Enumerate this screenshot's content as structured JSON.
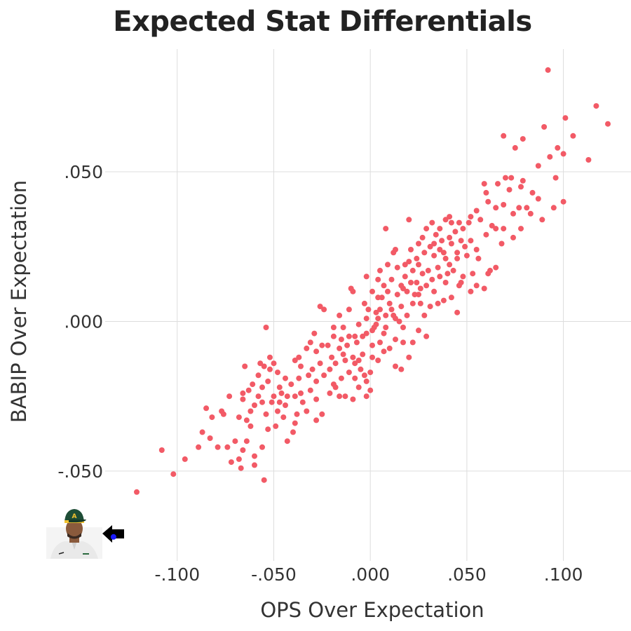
{
  "chart_data": {
    "type": "scatter",
    "title": "Expected Stat Differentials",
    "xlabel": "OPS Over Expectation",
    "ylabel": "BABIP Over Expectation",
    "xlim": [
      -0.17,
      0.135
    ],
    "ylim": [
      -0.08,
      0.091
    ],
    "x_ticks": [
      -0.1,
      -0.05,
      0.0,
      0.05,
      0.1
    ],
    "x_tick_labels": [
      "-.100",
      "-.050",
      ".000",
      ".050",
      ".100"
    ],
    "y_ticks": [
      -0.05,
      0.0,
      0.05
    ],
    "y_tick_labels": [
      "-.050",
      ".000",
      ".050"
    ],
    "grid": true,
    "colors": {
      "points": "#f25a66",
      "highlight": "#1a1aff",
      "grid": "#dddddd",
      "arrow": "#000000"
    },
    "icons": [
      "player-headshot",
      "left-arrow-icon"
    ],
    "highlight": {
      "x": -0.133,
      "y": -0.072
    },
    "points": [
      [
        0.092,
        0.084
      ],
      [
        0.117,
        0.072
      ],
      [
        0.123,
        0.066
      ],
      [
        0.101,
        0.068
      ],
      [
        0.069,
        0.062
      ],
      [
        0.079,
        0.061
      ],
      [
        0.09,
        0.065
      ],
      [
        0.105,
        0.062
      ],
      [
        0.075,
        0.058
      ],
      [
        0.097,
        0.058
      ],
      [
        0.1,
        0.056
      ],
      [
        0.093,
        0.055
      ],
      [
        0.113,
        0.054
      ],
      [
        0.087,
        0.052
      ],
      [
        0.07,
        0.048
      ],
      [
        0.073,
        0.048
      ],
      [
        0.079,
        0.047
      ],
      [
        0.096,
        0.048
      ],
      [
        0.059,
        0.046
      ],
      [
        0.078,
        0.045
      ],
      [
        0.072,
        0.044
      ],
      [
        0.087,
        0.041
      ],
      [
        0.061,
        0.04
      ],
      [
        0.065,
        0.038
      ],
      [
        0.069,
        0.039
      ],
      [
        0.074,
        0.036
      ],
      [
        0.077,
        0.038
      ],
      [
        0.081,
        0.038
      ],
      [
        0.1,
        0.04
      ],
      [
        0.055,
        0.037
      ],
      [
        0.052,
        0.035
      ],
      [
        0.057,
        0.034
      ],
      [
        0.063,
        0.032
      ],
      [
        0.083,
        0.036
      ],
      [
        0.041,
        0.035
      ],
      [
        0.042,
        0.033
      ],
      [
        0.039,
        0.034
      ],
      [
        0.046,
        0.033
      ],
      [
        0.048,
        0.031
      ],
      [
        0.051,
        0.033
      ],
      [
        0.065,
        0.031
      ],
      [
        0.069,
        0.031
      ],
      [
        0.02,
        0.034
      ],
      [
        0.008,
        0.031
      ],
      [
        0.032,
        0.033
      ],
      [
        0.036,
        0.031
      ],
      [
        0.029,
        0.031
      ],
      [
        0.034,
        0.029
      ],
      [
        0.044,
        0.03
      ],
      [
        0.041,
        0.028
      ],
      [
        0.025,
        0.026
      ],
      [
        0.031,
        0.025
      ],
      [
        0.042,
        0.026
      ],
      [
        0.047,
        0.027
      ],
      [
        0.049,
        0.025
      ],
      [
        0.052,
        0.027
      ],
      [
        0.013,
        0.024
      ],
      [
        0.021,
        0.024
      ],
      [
        0.036,
        0.024
      ],
      [
        0.045,
        0.023
      ],
      [
        0.05,
        0.022
      ],
      [
        0.028,
        0.023
      ],
      [
        0.012,
        0.023
      ],
      [
        0.033,
        0.022
      ],
      [
        0.039,
        0.021
      ],
      [
        0.024,
        0.021
      ],
      [
        0.018,
        0.019
      ],
      [
        0.014,
        0.018
      ],
      [
        0.022,
        0.017
      ],
      [
        0.027,
        0.016
      ],
      [
        0.035,
        0.018
      ],
      [
        0.041,
        0.019
      ],
      [
        0.045,
        0.021
      ],
      [
        0.056,
        0.021
      ],
      [
        0.065,
        0.018
      ],
      [
        0.048,
        0.015
      ],
      [
        0.053,
        0.016
      ],
      [
        0.061,
        0.016
      ],
      [
        0.032,
        0.014
      ],
      [
        0.029,
        0.012
      ],
      [
        0.036,
        0.015
      ],
      [
        0.016,
        0.012
      ],
      [
        0.017,
        0.011
      ],
      [
        0.021,
        0.013
      ],
      [
        0.005,
        0.017
      ],
      [
        0.011,
        0.014
      ],
      [
        0.024,
        0.013
      ],
      [
        0.039,
        0.013
      ],
      [
        0.046,
        0.012
      ],
      [
        0.033,
        0.01
      ],
      [
        0.052,
        0.01
      ],
      [
        0.055,
        0.012
      ],
      [
        0.059,
        0.011
      ],
      [
        0.042,
        0.008
      ],
      [
        0.038,
        0.007
      ],
      [
        0.025,
        0.009
      ],
      [
        0.019,
        0.01
      ],
      [
        0.014,
        0.009
      ],
      [
        0.009,
        0.01
      ],
      [
        0.006,
        0.008
      ],
      [
        -0.01,
        0.011
      ],
      [
        -0.009,
        0.01
      ],
      [
        0.001,
        0.01
      ],
      [
        0.004,
        0.008
      ],
      [
        0.023,
        0.009
      ],
      [
        0.01,
        0.006
      ],
      [
        0.016,
        0.005
      ],
      [
        0.022,
        0.006
      ],
      [
        0.026,
        0.006
      ],
      [
        0.011,
        0.004
      ],
      [
        0.005,
        0.004
      ],
      [
        -0.001,
        0.004
      ],
      [
        0.003,
        0.003
      ],
      [
        -0.011,
        0.004
      ],
      [
        -0.026,
        0.005
      ],
      [
        -0.024,
        0.004
      ],
      [
        0.012,
        0.002
      ],
      [
        0.019,
        0.002
      ],
      [
        0.028,
        0.002
      ],
      [
        0.008,
        0.002
      ],
      [
        0.004,
        0.001
      ],
      [
        -0.002,
        0.001
      ],
      [
        0.045,
        0.003
      ],
      [
        0.013,
        0.001
      ],
      [
        0.015,
        0.0
      ],
      [
        0.008,
        -0.002
      ],
      [
        0.002,
        -0.002
      ],
      [
        -0.006,
        -0.001
      ],
      [
        -0.014,
        -0.002
      ],
      [
        0.017,
        -0.002
      ],
      [
        0.025,
        -0.003
      ],
      [
        0.007,
        -0.004
      ],
      [
        -0.002,
        -0.004
      ],
      [
        -0.004,
        -0.005
      ],
      [
        -0.011,
        -0.005
      ],
      [
        -0.015,
        -0.006
      ],
      [
        -0.019,
        -0.005
      ],
      [
        0.013,
        -0.006
      ],
      [
        0.017,
        -0.007
      ],
      [
        0.005,
        -0.007
      ],
      [
        0.001,
        -0.008
      ],
      [
        -0.007,
        -0.007
      ],
      [
        -0.012,
        -0.008
      ],
      [
        -0.016,
        -0.009
      ],
      [
        -0.022,
        -0.008
      ],
      [
        -0.028,
        -0.01
      ],
      [
        -0.033,
        -0.009
      ],
      [
        -0.054,
        -0.002
      ],
      [
        -0.037,
        -0.012
      ],
      [
        -0.039,
        -0.013
      ],
      [
        -0.02,
        -0.012
      ],
      [
        -0.014,
        -0.011
      ],
      [
        -0.009,
        -0.012
      ],
      [
        -0.004,
        -0.011
      ],
      [
        0.001,
        -0.012
      ],
      [
        0.004,
        -0.013
      ],
      [
        -0.013,
        -0.013
      ],
      [
        -0.018,
        -0.014
      ],
      [
        -0.008,
        -0.014
      ],
      [
        0.02,
        -0.012
      ],
      [
        0.022,
        -0.007
      ],
      [
        -0.005,
        -0.016
      ],
      [
        -0.011,
        -0.017
      ],
      [
        -0.021,
        -0.016
      ],
      [
        -0.03,
        -0.016
      ],
      [
        -0.036,
        -0.015
      ],
      [
        -0.024,
        -0.018
      ],
      [
        -0.015,
        -0.019
      ],
      [
        -0.008,
        -0.019
      ],
      [
        -0.028,
        -0.02
      ],
      [
        -0.037,
        -0.019
      ],
      [
        -0.05,
        -0.014
      ],
      [
        -0.055,
        -0.015
      ],
      [
        -0.057,
        -0.014
      ],
      [
        -0.052,
        -0.012
      ],
      [
        -0.041,
        -0.021
      ],
      [
        -0.047,
        -0.022
      ],
      [
        -0.018,
        -0.022
      ],
      [
        -0.031,
        -0.023
      ],
      [
        -0.036,
        -0.024
      ],
      [
        -0.039,
        -0.025
      ],
      [
        -0.028,
        -0.026
      ],
      [
        -0.053,
        -0.02
      ],
      [
        -0.056,
        -0.022
      ],
      [
        -0.061,
        -0.021
      ],
      [
        -0.043,
        -0.025
      ],
      [
        -0.047,
        -0.027
      ],
      [
        -0.05,
        -0.025
      ],
      [
        -0.051,
        -0.027
      ],
      [
        -0.058,
        -0.025
      ],
      [
        -0.063,
        -0.023
      ],
      [
        -0.066,
        -0.024
      ],
      [
        -0.056,
        -0.027
      ],
      [
        -0.06,
        -0.028
      ],
      [
        -0.044,
        -0.028
      ],
      [
        -0.066,
        -0.026
      ],
      [
        -0.073,
        -0.025
      ],
      [
        -0.006,
        -0.022
      ],
      [
        -0.016,
        -0.025
      ],
      [
        -0.009,
        -0.026
      ],
      [
        -0.002,
        -0.025
      ],
      [
        -0.054,
        -0.031
      ],
      [
        -0.062,
        -0.03
      ],
      [
        -0.048,
        -0.03
      ],
      [
        -0.038,
        -0.031
      ],
      [
        -0.033,
        -0.03
      ],
      [
        -0.068,
        -0.032
      ],
      [
        -0.077,
        -0.03
      ],
      [
        -0.082,
        -0.032
      ],
      [
        -0.085,
        -0.029
      ],
      [
        -0.076,
        -0.031
      ],
      [
        -0.064,
        -0.033
      ],
      [
        -0.045,
        -0.032
      ],
      [
        -0.039,
        -0.034
      ],
      [
        -0.049,
        -0.035
      ],
      [
        -0.062,
        -0.035
      ],
      [
        -0.053,
        -0.036
      ],
      [
        -0.04,
        -0.037
      ],
      [
        -0.025,
        -0.031
      ],
      [
        -0.028,
        -0.033
      ],
      [
        -0.087,
        -0.037
      ],
      [
        -0.083,
        -0.039
      ],
      [
        -0.07,
        -0.04
      ],
      [
        -0.064,
        -0.04
      ],
      [
        -0.074,
        -0.042
      ],
      [
        -0.079,
        -0.042
      ],
      [
        -0.089,
        -0.042
      ],
      [
        -0.108,
        -0.043
      ],
      [
        -0.066,
        -0.043
      ],
      [
        -0.056,
        -0.042
      ],
      [
        -0.043,
        -0.04
      ],
      [
        -0.06,
        -0.045
      ],
      [
        -0.068,
        -0.046
      ],
      [
        -0.072,
        -0.047
      ],
      [
        -0.096,
        -0.046
      ],
      [
        -0.067,
        -0.049
      ],
      [
        -0.06,
        -0.048
      ],
      [
        -0.102,
        -0.051
      ],
      [
        -0.055,
        -0.053
      ],
      [
        -0.121,
        -0.057
      ],
      [
        -0.019,
        -0.021
      ],
      [
        -0.021,
        -0.024
      ],
      [
        -0.013,
        -0.025
      ],
      [
        0.016,
        -0.016
      ],
      [
        0.013,
        -0.015
      ],
      [
        0.0,
        -0.017
      ],
      [
        -0.002,
        -0.02
      ],
      [
        0.0,
        -0.023
      ],
      [
        0.029,
        -0.005
      ],
      [
        0.031,
        0.005
      ],
      [
        0.035,
        0.006
      ],
      [
        0.043,
        0.017
      ],
      [
        0.047,
        0.013
      ],
      [
        0.062,
        0.017
      ],
      [
        0.025,
        0.019
      ],
      [
        -0.003,
        0.006
      ],
      [
        -0.016,
        0.002
      ],
      [
        -0.019,
        -0.002
      ],
      [
        -0.025,
        -0.008
      ],
      [
        -0.032,
        -0.018
      ],
      [
        -0.035,
        -0.027
      ],
      [
        -0.044,
        -0.019
      ],
      [
        -0.048,
        -0.017
      ],
      [
        -0.058,
        -0.018
      ],
      [
        -0.065,
        -0.015
      ],
      [
        0.007,
        0.012
      ],
      [
        0.004,
        0.014
      ],
      [
        0.009,
        0.019
      ],
      [
        -0.002,
        0.015
      ],
      [
        0.038,
        0.023
      ],
      [
        0.055,
        0.024
      ],
      [
        0.06,
        0.029
      ],
      [
        0.068,
        0.026
      ],
      [
        0.074,
        0.028
      ],
      [
        0.078,
        0.031
      ],
      [
        0.089,
        0.034
      ],
      [
        0.095,
        0.038
      ],
      [
        0.06,
        0.043
      ],
      [
        0.066,
        0.046
      ],
      [
        0.084,
        0.043
      ],
      [
        0.007,
        -0.01
      ],
      [
        0.01,
        -0.009
      ],
      [
        -0.006,
        -0.013
      ],
      [
        -0.003,
        -0.018
      ],
      [
        -0.026,
        -0.014
      ],
      [
        -0.029,
        -0.004
      ],
      [
        -0.031,
        -0.007
      ],
      [
        -0.008,
        -0.005
      ],
      [
        0.001,
        -0.003
      ],
      [
        0.003,
        -0.001
      ],
      [
        -0.046,
        -0.024
      ],
      [
        -0.052,
        -0.016
      ],
      [
        0.018,
        0.015
      ],
      [
        0.02,
        0.02
      ],
      [
        0.026,
        0.011
      ],
      [
        0.03,
        0.017
      ],
      [
        0.033,
        0.026
      ],
      [
        0.037,
        0.027
      ],
      [
        0.027,
        0.028
      ],
      [
        0.04,
        0.016
      ]
    ]
  }
}
